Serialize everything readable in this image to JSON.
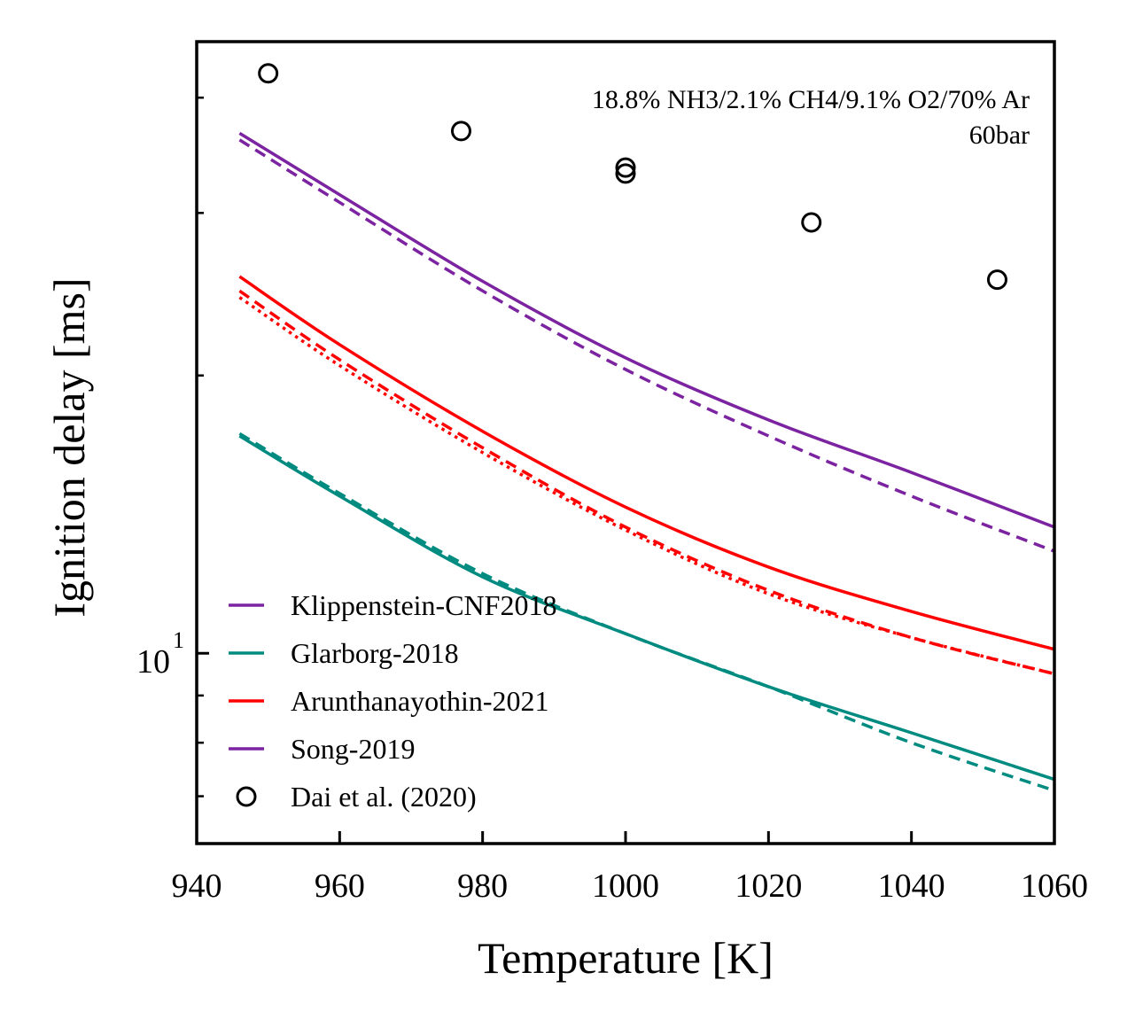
{
  "chart_data": {
    "type": "line",
    "xlabel": "Temperature [K]",
    "ylabel": "Ignition delay [ms]",
    "xlim": [
      940,
      1060
    ],
    "ylim": [
      6.22,
      46
    ],
    "yscale": "log",
    "x_ticks": [
      940,
      960,
      980,
      1000,
      1020,
      1040,
      1060
    ],
    "x_tick_labels": [
      "940",
      "960",
      "980",
      "1000",
      "1020",
      "1040",
      "1060"
    ],
    "y_major_ticks": [
      10
    ],
    "y_major_tick_label_base": "10",
    "y_major_tick_label_exp": "1",
    "y_minor_ticks": [
      7,
      8,
      9,
      20,
      30,
      40
    ],
    "grid": false,
    "annotations": [
      "18.8% NH3/2.1% CH4/9.1% O2/70% Ar",
      "60bar"
    ],
    "legend_position": "lower-left",
    "legend": [
      {
        "label": "Klippenstein-CNF2018",
        "color": "#7b23a0",
        "kind": "line"
      },
      {
        "label": "Glarborg-2018",
        "color": "#008b80",
        "kind": "line"
      },
      {
        "label": "Arunthanayothin-2021",
        "color": "#ff0000",
        "kind": "line"
      },
      {
        "label": "Song-2019",
        "color": "#7b23a0",
        "kind": "line"
      },
      {
        "label": "Dai et al. (2020)",
        "color": "#000000",
        "kind": "marker"
      }
    ],
    "series": [
      {
        "name": "Klippenstein-CNF2018",
        "color": "#7b23a0",
        "style": "solid",
        "x": [
          946,
          960,
          980,
          1000,
          1020,
          1040,
          1060
        ],
        "y": [
          36.6,
          31.4,
          25.3,
          20.9,
          17.9,
          15.7,
          13.7
        ]
      },
      {
        "color": "#7b23a0",
        "style": "dashed",
        "x": [
          946,
          960,
          980,
          1000,
          1020,
          1040,
          1060
        ],
        "y": [
          36.0,
          30.8,
          24.7,
          20.3,
          17.2,
          14.8,
          12.9
        ]
      },
      {
        "name": "Arunthanayothin-2021",
        "color": "#ff0000",
        "style": "solid",
        "x": [
          946,
          960,
          980,
          1000,
          1020,
          1040,
          1060
        ],
        "y": [
          25.6,
          21.6,
          17.4,
          14.4,
          12.4,
          11.1,
          10.1
        ]
      },
      {
        "color": "#ff0000",
        "style": "dashed",
        "x": [
          946,
          960,
          980,
          1000,
          1020,
          1040,
          1060
        ],
        "y": [
          24.7,
          20.8,
          16.7,
          13.7,
          11.7,
          10.4,
          9.5
        ]
      },
      {
        "color": "#ff0000",
        "style": "dotted",
        "x": [
          946,
          960,
          980,
          1000,
          1020,
          1040,
          1060
        ],
        "y": [
          24.3,
          20.5,
          16.5,
          13.6,
          11.6,
          10.4,
          9.5
        ]
      },
      {
        "name": "Glarborg-2018",
        "color": "#008b80",
        "style": "solid",
        "x": [
          946,
          960,
          980,
          1000,
          1020,
          1040,
          1060
        ],
        "y": [
          17.2,
          14.8,
          12.1,
          10.5,
          9.2,
          8.2,
          7.3
        ]
      },
      {
        "color": "#008b80",
        "style": "dashed",
        "x": [
          946,
          960,
          980,
          1000,
          1020,
          1040,
          1060
        ],
        "y": [
          17.3,
          14.9,
          12.2,
          10.5,
          9.2,
          8.0,
          7.1
        ]
      },
      {
        "name": "Dai et al. (2020)",
        "color": "#000000",
        "style": "marker",
        "x": [
          950,
          977,
          1000,
          1000,
          1026,
          1052
        ],
        "y": [
          42.5,
          36.8,
          33.6,
          33.1,
          29.3,
          25.4
        ]
      }
    ]
  }
}
